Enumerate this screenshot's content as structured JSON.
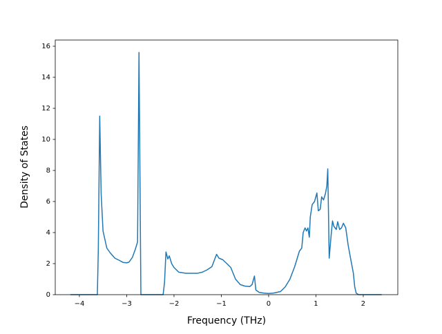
{
  "chart_data": {
    "type": "line",
    "xlabel": "Frequency (THz)",
    "ylabel": "Density of States",
    "color": "#1f77b4",
    "x": [
      -4.19,
      -3.62,
      -3.6,
      -3.57,
      -3.54,
      -3.5,
      -3.42,
      -3.35,
      -3.25,
      -3.15,
      -3.08,
      -3.0,
      -2.95,
      -2.88,
      -2.82,
      -2.77,
      -2.74,
      -2.7,
      -2.23,
      -2.2,
      -2.17,
      -2.13,
      -2.1,
      -2.05,
      -2.0,
      -1.9,
      -1.75,
      -1.5,
      -1.4,
      -1.3,
      -1.2,
      -1.1,
      -1.05,
      -0.97,
      -0.9,
      -0.8,
      -0.7,
      -0.6,
      -0.5,
      -0.4,
      -0.35,
      -0.3,
      -0.27,
      -0.2,
      -0.1,
      0.0,
      0.1,
      0.25,
      0.35,
      0.45,
      0.55,
      0.65,
      0.7,
      0.73,
      0.77,
      0.8,
      0.83,
      0.86,
      0.88,
      0.92,
      0.97,
      1.02,
      1.05,
      1.09,
      1.12,
      1.16,
      1.2,
      1.23,
      1.25,
      1.28,
      1.32,
      1.35,
      1.38,
      1.43,
      1.46,
      1.5,
      1.54,
      1.58,
      1.63,
      1.68,
      1.74,
      1.79,
      1.82,
      1.85,
      1.9,
      2.39
    ],
    "values": [
      0,
      0,
      2.9,
      11.5,
      6.5,
      4.1,
      3.0,
      2.7,
      2.35,
      2.2,
      2.08,
      2.05,
      2.1,
      2.4,
      2.9,
      3.4,
      15.6,
      0,
      0,
      0.8,
      2.75,
      2.3,
      2.5,
      2.0,
      1.75,
      1.45,
      1.38,
      1.38,
      1.45,
      1.6,
      1.8,
      2.6,
      2.35,
      2.25,
      2.05,
      1.75,
      1.0,
      0.65,
      0.55,
      0.52,
      0.65,
      1.2,
      0.3,
      0.15,
      0.1,
      0.08,
      0.1,
      0.2,
      0.5,
      1.0,
      1.8,
      2.8,
      3.0,
      4.0,
      4.3,
      4.1,
      4.3,
      3.7,
      5.0,
      5.8,
      6.0,
      6.55,
      5.4,
      5.5,
      6.3,
      6.1,
      6.5,
      7.0,
      8.1,
      2.35,
      3.8,
      4.75,
      4.4,
      4.2,
      4.7,
      4.2,
      4.3,
      4.6,
      4.3,
      3.2,
      2.2,
      1.4,
      0.5,
      0.1,
      0,
      0
    ],
    "xlim": [
      -4.51,
      2.73
    ],
    "ylim": [
      0,
      16.4
    ],
    "xticks": [
      {
        "value": -4,
        "label": "−4"
      },
      {
        "value": -3,
        "label": "−3"
      },
      {
        "value": -2,
        "label": "−2"
      },
      {
        "value": -1,
        "label": "−1"
      },
      0,
      1,
      2
    ],
    "yticks": [
      0,
      2,
      4,
      6,
      8,
      10,
      12,
      14,
      16
    ],
    "grid": false
  }
}
